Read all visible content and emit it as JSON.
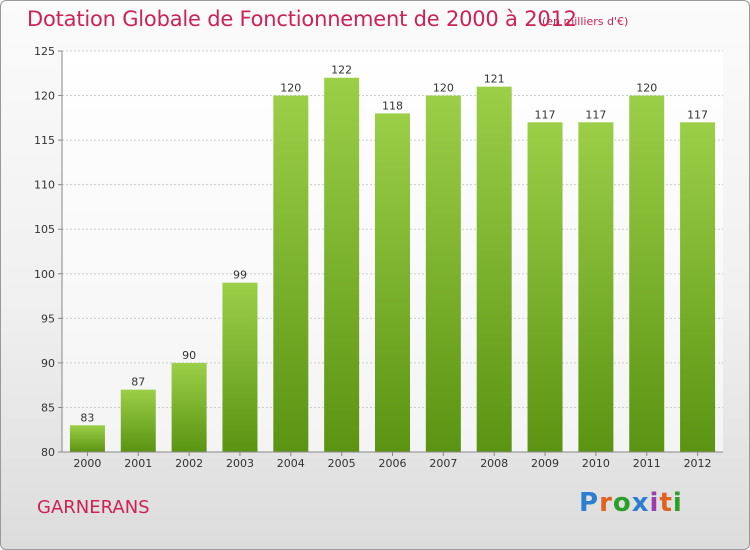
{
  "header": {
    "title": "Dotation Globale de Fonctionnement de 2000 à 2012",
    "subtitle": "(en milliers d'€)"
  },
  "footer": {
    "commune": "GARNERANS",
    "logo_text": "Proxiti"
  },
  "colors": {
    "title": "#cc2255",
    "bar_top": "#9ccf48",
    "bar_bottom": "#5a9412",
    "grid": "#cccccc"
  },
  "chart_data": {
    "type": "bar",
    "title": "Dotation Globale de Fonctionnement de 2000 à 2012",
    "subtitle": "(en milliers d'€)",
    "categories": [
      "2000",
      "2001",
      "2002",
      "2003",
      "2004",
      "2005",
      "2006",
      "2007",
      "2008",
      "2009",
      "2010",
      "2011",
      "2012"
    ],
    "values": [
      83,
      87,
      90,
      99,
      120,
      122,
      118,
      120,
      121,
      117,
      117,
      120,
      117
    ],
    "ylim": [
      80,
      125
    ],
    "yticks": [
      80,
      85,
      90,
      95,
      100,
      105,
      110,
      115,
      120,
      125
    ],
    "grid": true,
    "data_labels": true
  }
}
